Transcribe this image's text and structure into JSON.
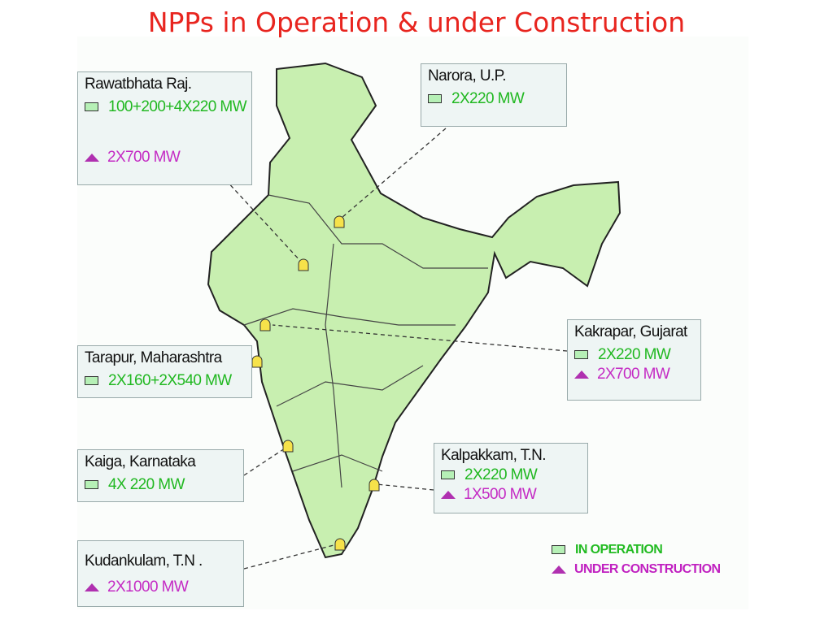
{
  "title": "NPPs in Operation & under Construction",
  "sites": [
    {
      "name": "Rawatbhata Raj.",
      "in_operation": "100+200+4X220 MW",
      "under_construction": "2X700 MW"
    },
    {
      "name": "Narora, U.P.",
      "in_operation": "2X220 MW"
    },
    {
      "name": "Tarapur, Maharashtra",
      "in_operation": "2X160+2X540 MW"
    },
    {
      "name": "Kakrapar, Gujarat",
      "in_operation": "2X220 MW",
      "under_construction": "2X700 MW"
    },
    {
      "name": "Kaiga, Karnataka",
      "in_operation": "4X 220 MW"
    },
    {
      "name": "Kalpakkam, T.N.",
      "in_operation": "2X220 MW",
      "under_construction": "1X500 MW"
    },
    {
      "name": "Kudankulam, T.N .",
      "under_construction": "2X1000 MW"
    }
  ],
  "legend": {
    "in_operation": "IN OPERATION",
    "under_construction": "UNDER CONSTRUCTION"
  }
}
